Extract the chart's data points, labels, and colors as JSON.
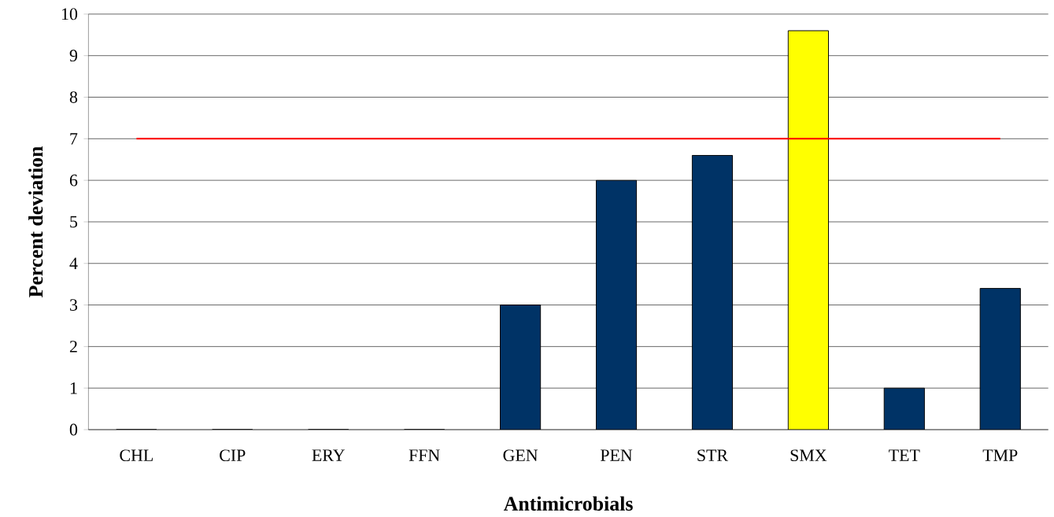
{
  "chart_data": {
    "type": "bar",
    "xlabel": "Antimicrobials",
    "ylabel": "Percent deviation",
    "categories": [
      "CHL",
      "CIP",
      "ERY",
      "FFN",
      "GEN",
      "PEN",
      "STR",
      "SMX",
      "TET",
      "TMP"
    ],
    "values": [
      0,
      0,
      0,
      0,
      3,
      6,
      6.6,
      9.6,
      1,
      3.4
    ],
    "colors": [
      "#003366",
      "#003366",
      "#003366",
      "#003366",
      "#003366",
      "#003366",
      "#003366",
      "#ffff00",
      "#003366",
      "#003366"
    ],
    "ylim": [
      0,
      10
    ],
    "yticks": [
      0,
      1,
      2,
      3,
      4,
      5,
      6,
      7,
      8,
      9,
      10
    ],
    "grid": "y",
    "ref_lines": [
      {
        "axis": "y",
        "value": 7,
        "color": "#ff0000"
      }
    ]
  }
}
